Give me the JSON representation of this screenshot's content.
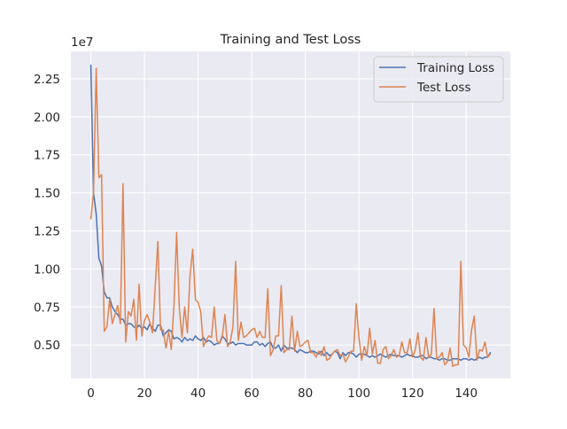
{
  "chart_data": {
    "type": "line",
    "title": "Training and Test Loss",
    "xlabel": "",
    "ylabel": "",
    "y_offset_label": "1e7",
    "y_multiplier": 10000000,
    "xlim": [
      -7.45,
      156.45
    ],
    "ylim": [
      2.8,
      24.3
    ],
    "x_ticks": [
      0,
      20,
      40,
      60,
      80,
      100,
      120,
      140
    ],
    "x_tick_labels": [
      "0",
      "20",
      "40",
      "60",
      "80",
      "100",
      "120",
      "140"
    ],
    "y_ticks": [
      5.0,
      7.5,
      10.0,
      12.5,
      15.0,
      17.5,
      20.0,
      22.5
    ],
    "y_tick_labels": [
      "0.50",
      "0.75",
      "1.00",
      "1.25",
      "1.50",
      "1.75",
      "2.00",
      "2.25"
    ],
    "grid": true,
    "legend_position": "top-right",
    "colors": {
      "background": "#eaeaf2",
      "grid": "#ffffff",
      "Training Loss": "#4c72b0",
      "Test Loss": "#dd8452"
    },
    "series": [
      {
        "name": "Training Loss",
        "values": [
          23.4,
          15.0,
          13.6,
          10.7,
          10.2,
          8.5,
          8.1,
          8.1,
          7.5,
          7.2,
          7.0,
          6.7,
          6.7,
          6.3,
          6.4,
          6.4,
          6.2,
          6.1,
          6.3,
          6.1,
          6.2,
          6.0,
          6.4,
          6.1,
          5.9,
          6.3,
          6.3,
          5.6,
          5.8,
          6.0,
          5.9,
          5.4,
          5.5,
          5.4,
          5.2,
          5.5,
          5.3,
          5.4,
          5.3,
          5.6,
          5.4,
          5.3,
          5.5,
          5.2,
          5.3,
          5.2,
          5.0,
          5.1,
          5.1,
          5.6,
          5.4,
          5.1,
          5.1,
          5.2,
          5.0,
          5.1,
          5.1,
          5.1,
          5.0,
          5.0,
          5.0,
          5.2,
          5.2,
          5.0,
          5.1,
          4.9,
          5.1,
          5.2,
          4.8,
          4.8,
          5.0,
          4.6,
          5.0,
          4.8,
          4.8,
          4.8,
          4.7,
          4.5,
          4.7,
          4.6,
          4.5,
          4.5,
          4.6,
          4.6,
          4.5,
          4.4,
          4.6,
          4.3,
          4.5,
          4.3,
          4.4,
          4.6,
          4.5,
          4.1,
          4.5,
          4.3,
          4.5,
          4.5,
          4.4,
          4.2,
          4.4,
          4.4,
          4.4,
          4.3,
          4.2,
          4.3,
          4.2,
          4.3,
          4.4,
          4.3,
          4.2,
          4.3,
          4.4,
          4.3,
          4.3,
          4.3,
          4.2,
          4.3,
          4.4,
          4.3,
          4.3,
          4.2,
          4.2,
          4.3,
          4.3,
          4.1,
          4.2,
          4.2,
          4.1,
          4.1,
          4.0,
          4.1,
          4.1,
          4.0,
          4.0,
          4.1,
          4.1,
          4.1,
          4.0,
          4.1,
          4.1,
          4.0,
          4.1,
          4.0,
          4.1,
          4.2,
          4.1,
          4.2,
          4.2,
          4.5
        ]
      },
      {
        "name": "Test Loss",
        "values": [
          13.3,
          15.0,
          23.2,
          16.0,
          16.2,
          5.9,
          6.2,
          8.0,
          6.4,
          7.0,
          7.6,
          6.4,
          15.6,
          5.2,
          7.2,
          6.9,
          8.0,
          5.3,
          9.0,
          5.6,
          6.6,
          7.0,
          6.5,
          5.8,
          8.8,
          11.8,
          6.0,
          6.0,
          4.8,
          5.9,
          4.7,
          7.6,
          12.4,
          7.4,
          5.5,
          7.5,
          5.8,
          9.6,
          11.3,
          8.0,
          7.8,
          7.2,
          4.9,
          5.3,
          5.6,
          5.5,
          7.5,
          5.3,
          5.1,
          5.5,
          7.0,
          4.9,
          5.2,
          6.2,
          10.5,
          5.3,
          6.5,
          5.5,
          5.6,
          5.8,
          6.0,
          6.1,
          5.5,
          5.9,
          5.5,
          5.5,
          8.7,
          4.3,
          4.7,
          5.6,
          5.6,
          8.9,
          4.5,
          4.7,
          4.7,
          6.9,
          4.6,
          5.9,
          4.9,
          5.0,
          5.2,
          5.3,
          4.5,
          4.5,
          4.2,
          4.6,
          4.3,
          4.9,
          4.0,
          4.1,
          4.4,
          4.6,
          4.7,
          4.3,
          4.4,
          3.9,
          4.2,
          4.6,
          4.6,
          7.7,
          5.5,
          4.0,
          4.9,
          4.3,
          6.1,
          4.4,
          5.3,
          3.8,
          3.8,
          4.7,
          4.9,
          4.1,
          4.3,
          4.7,
          4.2,
          4.3,
          5.2,
          4.5,
          4.5,
          5.4,
          4.2,
          4.7,
          5.8,
          4.2,
          4.0,
          5.5,
          4.2,
          4.4,
          7.4,
          4.1,
          4.2,
          4.5,
          3.7,
          3.9,
          4.8,
          3.6,
          3.7,
          3.7,
          10.5,
          5.0,
          4.8,
          4.2,
          6.0,
          6.9,
          4.0,
          4.7,
          4.6,
          5.2,
          4.2,
          4.4
        ]
      }
    ]
  }
}
